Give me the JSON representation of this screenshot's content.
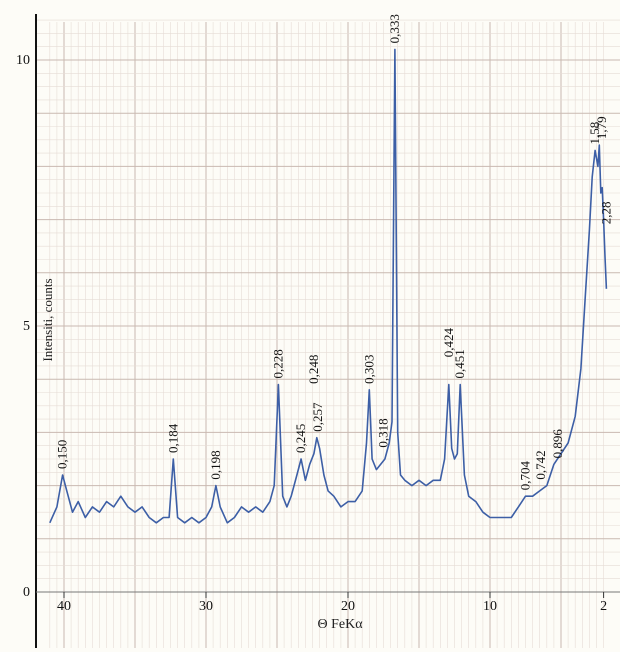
{
  "chart_data": {
    "type": "line",
    "title": "",
    "xlabel": "Θ FeKα",
    "ylabel": "Intensiti, counts",
    "x_reversed": true,
    "xlim": [
      41,
      1.8
    ],
    "ylim": [
      0,
      10.8
    ],
    "x_ticks": [
      40,
      30,
      20,
      10,
      2
    ],
    "x_tick_labels": [
      "40",
      "30",
      "20",
      "10",
      "2"
    ],
    "y_ticks": [
      0,
      5,
      10
    ],
    "y_tick_labels": [
      "0",
      "5",
      "10"
    ],
    "grid": true,
    "series": [
      {
        "name": "",
        "color": "#3d5fa6",
        "x": [
          41.0,
          40.5,
          40.1,
          39.8,
          39.4,
          39.0,
          38.5,
          38.0,
          37.5,
          37.0,
          36.5,
          36.0,
          35.5,
          35.0,
          34.5,
          34.0,
          33.5,
          33.0,
          32.6,
          32.3,
          32.0,
          31.5,
          31.0,
          30.5,
          30.0,
          29.6,
          29.3,
          29.0,
          28.5,
          28.0,
          27.5,
          27.0,
          26.5,
          26.0,
          25.5,
          25.2,
          24.9,
          24.6,
          24.3,
          24.0,
          23.6,
          23.3,
          23.0,
          22.7,
          22.4,
          22.2,
          22.0,
          21.7,
          21.4,
          21.0,
          20.5,
          20.0,
          19.5,
          19.0,
          18.7,
          18.5,
          18.3,
          18.0,
          17.7,
          17.4,
          17.1,
          16.9,
          16.7,
          16.5,
          16.3,
          16.0,
          15.5,
          15.0,
          14.5,
          14.0,
          13.5,
          13.2,
          12.9,
          12.7,
          12.5,
          12.3,
          12.1,
          11.8,
          11.5,
          11.0,
          10.5,
          10.0,
          9.5,
          9.0,
          8.5,
          8.0,
          7.5,
          7.0,
          6.5,
          6.0,
          5.5,
          5.0,
          4.5,
          4.0,
          3.6,
          3.3,
          3.0,
          2.8,
          2.6,
          2.4,
          2.3,
          2.2,
          2.1,
          2.0,
          1.9,
          1.8
        ],
        "y": [
          1.3,
          1.6,
          2.2,
          1.9,
          1.5,
          1.7,
          1.4,
          1.6,
          1.5,
          1.7,
          1.6,
          1.8,
          1.6,
          1.5,
          1.6,
          1.4,
          1.3,
          1.4,
          1.4,
          2.5,
          1.4,
          1.3,
          1.4,
          1.3,
          1.4,
          1.6,
          2.0,
          1.6,
          1.3,
          1.4,
          1.6,
          1.5,
          1.6,
          1.5,
          1.7,
          2.0,
          3.9,
          1.8,
          1.6,
          1.8,
          2.2,
          2.5,
          2.1,
          2.4,
          2.6,
          2.9,
          2.7,
          2.2,
          1.9,
          1.8,
          1.6,
          1.7,
          1.7,
          1.9,
          2.8,
          3.8,
          2.5,
          2.3,
          2.4,
          2.5,
          2.8,
          3.2,
          10.2,
          3.0,
          2.2,
          2.1,
          2.0,
          2.1,
          2.0,
          2.1,
          2.1,
          2.5,
          3.9,
          2.7,
          2.5,
          2.6,
          3.9,
          2.2,
          1.8,
          1.7,
          1.5,
          1.4,
          1.4,
          1.4,
          1.4,
          1.6,
          1.8,
          1.8,
          1.9,
          2.0,
          2.4,
          2.6,
          2.8,
          3.3,
          4.2,
          5.5,
          6.8,
          7.8,
          8.3,
          8.0,
          8.4,
          7.5,
          7.6,
          7.0,
          6.3,
          5.7
        ]
      }
    ],
    "annotations": [
      {
        "text": "0,150",
        "x": 40.1,
        "y": 2.2
      },
      {
        "text": "0,184",
        "x": 32.3,
        "y": 2.5
      },
      {
        "text": "0,198",
        "x": 29.3,
        "y": 2.0
      },
      {
        "text": "0,228",
        "x": 24.9,
        "y": 3.9
      },
      {
        "text": "0,245",
        "x": 23.3,
        "y": 2.5
      },
      {
        "text": "0,248",
        "x": 22.4,
        "y": 3.8
      },
      {
        "text": "0,257",
        "x": 22.1,
        "y": 2.9
      },
      {
        "text": "0,303",
        "x": 18.5,
        "y": 3.8
      },
      {
        "text": "0,318",
        "x": 17.5,
        "y": 2.6
      },
      {
        "text": "0,333",
        "x": 16.7,
        "y": 10.2
      },
      {
        "text": "0,424",
        "x": 12.9,
        "y": 4.3
      },
      {
        "text": "0,451",
        "x": 12.1,
        "y": 3.9
      },
      {
        "text": "0,704",
        "x": 7.5,
        "y": 1.8
      },
      {
        "text": "0,742",
        "x": 6.4,
        "y": 2.0
      },
      {
        "text": "0,896",
        "x": 5.2,
        "y": 2.4
      },
      {
        "text": "1,58",
        "x": 2.6,
        "y": 8.3
      },
      {
        "text": "1,79",
        "x": 2.1,
        "y": 8.4
      },
      {
        "text": "2,28",
        "x": 1.8,
        "y": 6.8
      }
    ]
  }
}
